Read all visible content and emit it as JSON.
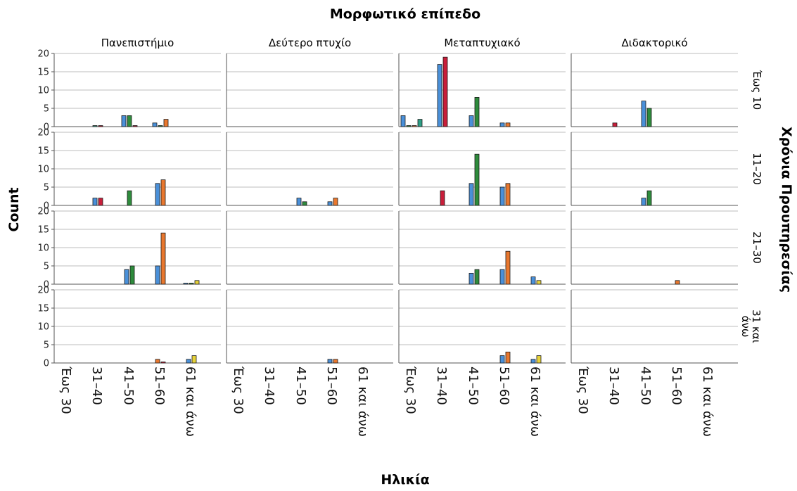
{
  "chart_data": {
    "type": "bar",
    "title": "Μορφωτικό επίπεδο",
    "xlabel": "Ηλικία",
    "ylabel": "Count",
    "row_title": "Χρόνια Προυπηρεσίας",
    "ylim": [
      0,
      20
    ],
    "yticks": [
      0,
      5,
      10,
      15,
      20
    ],
    "grid": true,
    "legend": "none",
    "columns": [
      "Πανεπιστήμιο",
      "Δεύτερο πτυχίο",
      "Μεταπτυχιακό",
      "Διδακτορικό"
    ],
    "rows": [
      "Έως 10",
      "11–20",
      "21–30",
      "31 και άνω"
    ],
    "categories": [
      "Έως 30",
      "31–40",
      "41–50",
      "51–60",
      "61 και άνω"
    ],
    "series_colors": [
      "#4a90d9",
      "#2e9e86",
      "#2e8b3c",
      "#e8772e",
      "#c81e3a",
      "#e6d23a"
    ],
    "panels": [
      {
        "column": "Πανεπιστήμιο",
        "row": "Έως 10",
        "bars": [
          {
            "category": "31–40",
            "color": "#2e9e86",
            "value": 0
          },
          {
            "category": "31–40",
            "color": "#c81e3a",
            "value": 0
          },
          {
            "category": "41–50",
            "color": "#4a90d9",
            "value": 3
          },
          {
            "category": "41–50",
            "color": "#2e8b3c",
            "value": 3
          },
          {
            "category": "41–50",
            "color": "#c81e3a",
            "value": 0
          },
          {
            "category": "51–60",
            "color": "#4a90d9",
            "value": 1
          },
          {
            "category": "51–60",
            "color": "#2e8b3c",
            "value": 0
          },
          {
            "category": "51–60",
            "color": "#e8772e",
            "value": 2
          }
        ]
      },
      {
        "column": "Μεταπτυχιακό",
        "row": "Έως 10",
        "bars": [
          {
            "category": "Έως 30",
            "color": "#4a90d9",
            "value": 3
          },
          {
            "category": "Έως 30",
            "color": "#2e8b3c",
            "value": 0
          },
          {
            "category": "Έως 30",
            "color": "#e8772e",
            "value": 0
          },
          {
            "category": "Έως 30",
            "color": "#2e9e86",
            "value": 2
          },
          {
            "category": "31–40",
            "color": "#4a90d9",
            "value": 17
          },
          {
            "category": "31–40",
            "color": "#c81e3a",
            "value": 19
          },
          {
            "category": "41–50",
            "color": "#4a90d9",
            "value": 3
          },
          {
            "category": "41–50",
            "color": "#2e8b3c",
            "value": 8
          },
          {
            "category": "51–60",
            "color": "#4a90d9",
            "value": 1
          },
          {
            "category": "51–60",
            "color": "#e8772e",
            "value": 1
          }
        ]
      },
      {
        "column": "Διδακτορικό",
        "row": "Έως 10",
        "bars": [
          {
            "category": "31–40",
            "color": "#c81e3a",
            "value": 1
          },
          {
            "category": "41–50",
            "color": "#4a90d9",
            "value": 7
          },
          {
            "category": "41–50",
            "color": "#2e8b3c",
            "value": 5
          }
        ]
      },
      {
        "column": "Πανεπιστήμιο",
        "row": "11–20",
        "bars": [
          {
            "category": "31–40",
            "color": "#4a90d9",
            "value": 2
          },
          {
            "category": "31–40",
            "color": "#c81e3a",
            "value": 2
          },
          {
            "category": "41–50",
            "color": "#2e8b3c",
            "value": 4
          },
          {
            "category": "51–60",
            "color": "#4a90d9",
            "value": 6
          },
          {
            "category": "51–60",
            "color": "#e8772e",
            "value": 7
          }
        ]
      },
      {
        "column": "Δεύτερο πτυχίο",
        "row": "11–20",
        "bars": [
          {
            "category": "41–50",
            "color": "#4a90d9",
            "value": 2
          },
          {
            "category": "41–50",
            "color": "#2e8b3c",
            "value": 1
          },
          {
            "category": "51–60",
            "color": "#4a90d9",
            "value": 1
          },
          {
            "category": "51–60",
            "color": "#e8772e",
            "value": 2
          }
        ]
      },
      {
        "column": "Μεταπτυχιακό",
        "row": "11–20",
        "bars": [
          {
            "category": "31–40",
            "color": "#c81e3a",
            "value": 4
          },
          {
            "category": "41–50",
            "color": "#4a90d9",
            "value": 6
          },
          {
            "category": "41–50",
            "color": "#2e8b3c",
            "value": 14
          },
          {
            "category": "51–60",
            "color": "#4a90d9",
            "value": 5
          },
          {
            "category": "51–60",
            "color": "#e8772e",
            "value": 6
          }
        ]
      },
      {
        "column": "Διδακτορικό",
        "row": "11–20",
        "bars": [
          {
            "category": "41–50",
            "color": "#4a90d9",
            "value": 2
          },
          {
            "category": "41–50",
            "color": "#2e8b3c",
            "value": 4
          }
        ]
      },
      {
        "column": "Πανεπιστήμιο",
        "row": "21–30",
        "bars": [
          {
            "category": "41–50",
            "color": "#4a90d9",
            "value": 4
          },
          {
            "category": "41–50",
            "color": "#2e8b3c",
            "value": 5
          },
          {
            "category": "51–60",
            "color": "#4a90d9",
            "value": 5
          },
          {
            "category": "51–60",
            "color": "#e8772e",
            "value": 14
          },
          {
            "category": "61 και άνω",
            "color": "#4a90d9",
            "value": 0
          },
          {
            "category": "61 και άνω",
            "color": "#2e8b3c",
            "value": 0
          },
          {
            "category": "61 και άνω",
            "color": "#e6d23a",
            "value": 1
          }
        ]
      },
      {
        "column": "Μεταπτυχιακό",
        "row": "21–30",
        "bars": [
          {
            "category": "41–50",
            "color": "#4a90d9",
            "value": 3
          },
          {
            "category": "41–50",
            "color": "#2e8b3c",
            "value": 4
          },
          {
            "category": "51–60",
            "color": "#4a90d9",
            "value": 4
          },
          {
            "category": "51–60",
            "color": "#e8772e",
            "value": 9
          },
          {
            "category": "61 και άνω",
            "color": "#4a90d9",
            "value": 2
          },
          {
            "category": "61 και άνω",
            "color": "#e6d23a",
            "value": 1
          }
        ]
      },
      {
        "column": "Διδακτορικό",
        "row": "21–30",
        "bars": [
          {
            "category": "51–60",
            "color": "#e8772e",
            "value": 1
          }
        ]
      },
      {
        "column": "Πανεπιστήμιο",
        "row": "31 και άνω",
        "bars": [
          {
            "category": "51–60",
            "color": "#e8772e",
            "value": 1
          },
          {
            "category": "51–60",
            "color": "#c81e3a",
            "value": 0
          },
          {
            "category": "61 και άνω",
            "color": "#4a90d9",
            "value": 1
          },
          {
            "category": "61 και άνω",
            "color": "#e6d23a",
            "value": 2
          }
        ]
      },
      {
        "column": "Δεύτερο πτυχίο",
        "row": "31 και άνω",
        "bars": [
          {
            "category": "51–60",
            "color": "#4a90d9",
            "value": 1
          },
          {
            "category": "51–60",
            "color": "#e8772e",
            "value": 1
          }
        ]
      },
      {
        "column": "Μεταπτυχιακό",
        "row": "31 και άνω",
        "bars": [
          {
            "category": "51–60",
            "color": "#4a90d9",
            "value": 2
          },
          {
            "category": "51–60",
            "color": "#e8772e",
            "value": 3
          },
          {
            "category": "61 και άνω",
            "color": "#4a90d9",
            "value": 1
          },
          {
            "category": "61 και άνω",
            "color": "#e6d23a",
            "value": 2
          }
        ]
      }
    ]
  }
}
